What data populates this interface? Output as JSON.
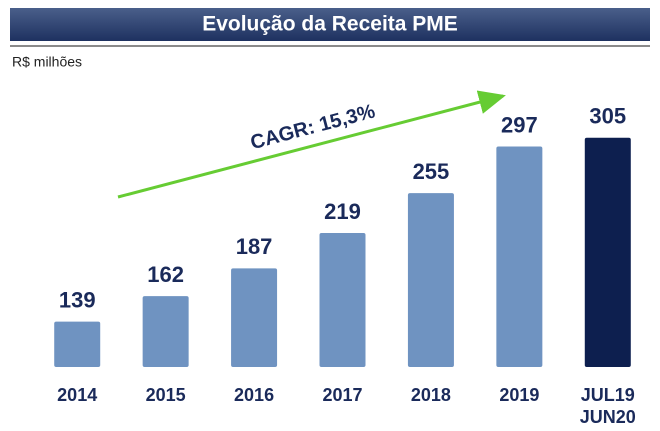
{
  "chart_data": {
    "type": "bar",
    "title": "Evolução da Receita PME",
    "subtitle": "R$ milhões",
    "categories": [
      "2014",
      "2015",
      "2016",
      "2017",
      "2018",
      "2019",
      "JUL19 JUN20"
    ],
    "values": [
      139,
      162,
      187,
      219,
      255,
      297,
      305
    ],
    "colors": [
      "#6f93c1",
      "#6f93c1",
      "#6f93c1",
      "#6f93c1",
      "#6f93c1",
      "#6f93c1",
      "#0d1f4f"
    ],
    "ylim": [
      98,
      330
    ],
    "annotation": "CAGR: 15,3%"
  }
}
